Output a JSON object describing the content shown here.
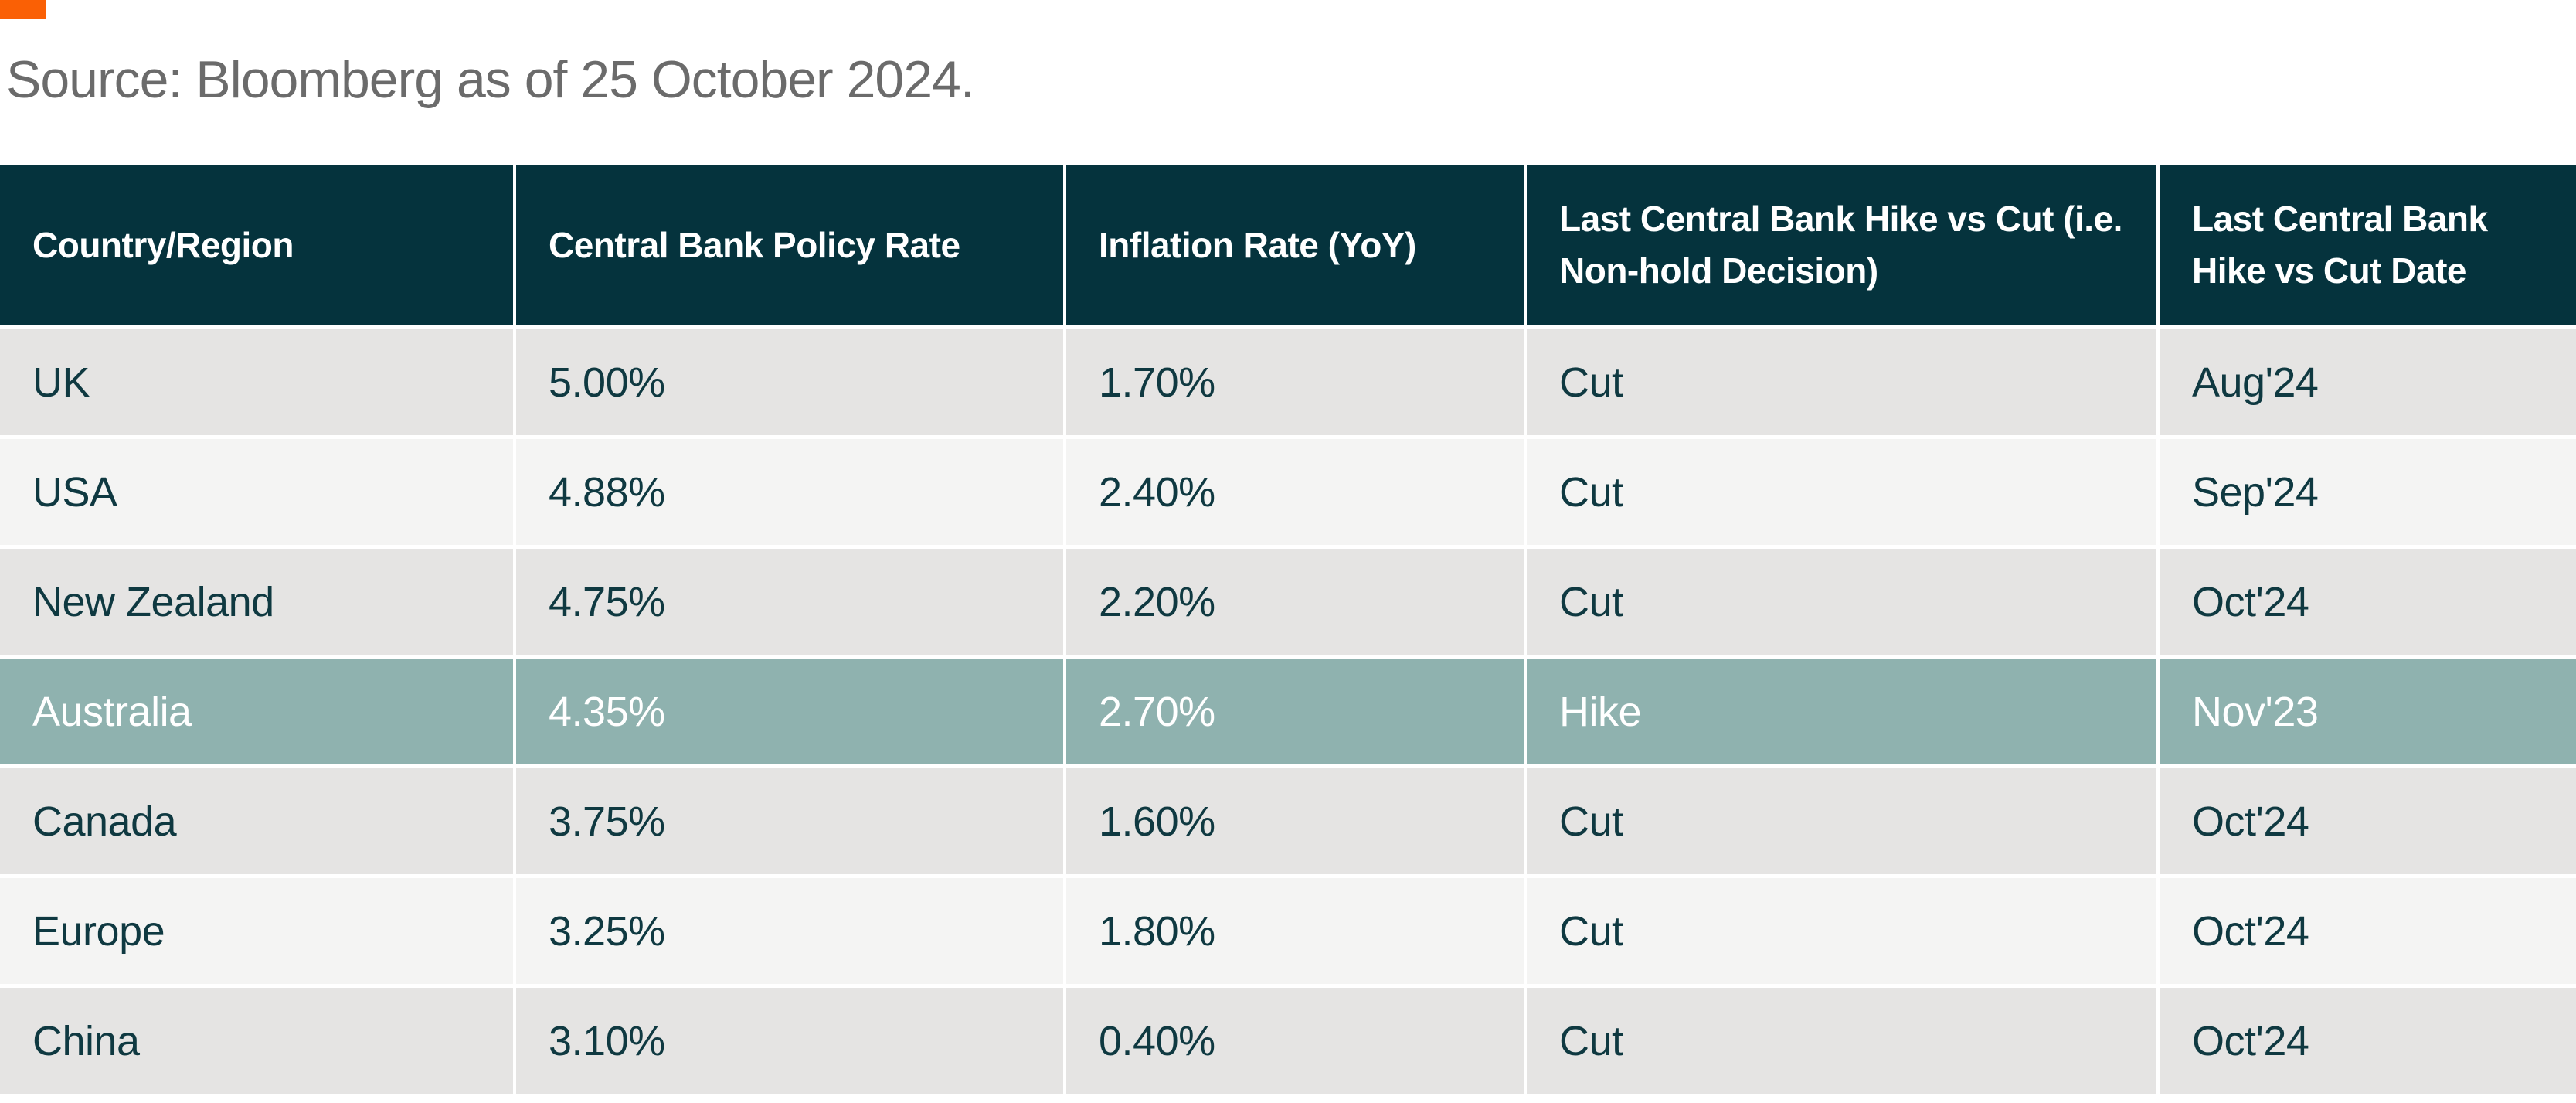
{
  "source_note": "Source: Bloomberg as of 25 October 2024.",
  "colors": {
    "accent_orange": "#FA6005",
    "source_text": "#6B6B6B",
    "header_bg": "#05333D",
    "header_text": "#FFFFFF",
    "cell_text": "#0F3941",
    "row_bg_odd": "#E5E4E3",
    "row_bg_even": "#F4F4F3",
    "highlight_bg": "#8FB2AF",
    "highlight_text": "#FFFFFF"
  },
  "table": {
    "columns": [
      {
        "key": "country",
        "label": "Country/Region"
      },
      {
        "key": "policy_rate",
        "label": "Central Bank Policy Rate"
      },
      {
        "key": "inflation",
        "label": "Inflation Rate (YoY)"
      },
      {
        "key": "decision",
        "label": "Last Central Bank Hike vs Cut (i.e. Non-hold Decision)"
      },
      {
        "key": "date",
        "label": "Last Central Bank Hike vs Cut Date"
      }
    ],
    "rows": [
      {
        "country": "UK",
        "policy_rate": "5.00%",
        "inflation": "1.70%",
        "decision": "Cut",
        "date": "Aug'24",
        "highlight": false
      },
      {
        "country": "USA",
        "policy_rate": "4.88%",
        "inflation": "2.40%",
        "decision": "Cut",
        "date": "Sep'24",
        "highlight": false
      },
      {
        "country": "New Zealand",
        "policy_rate": "4.75%",
        "inflation": "2.20%",
        "decision": "Cut",
        "date": "Oct'24",
        "highlight": false
      },
      {
        "country": "Australia",
        "policy_rate": "4.35%",
        "inflation": "2.70%",
        "decision": "Hike",
        "date": "Nov'23",
        "highlight": true
      },
      {
        "country": "Canada",
        "policy_rate": "3.75%",
        "inflation": "1.60%",
        "decision": "Cut",
        "date": "Oct'24",
        "highlight": false
      },
      {
        "country": "Europe",
        "policy_rate": "3.25%",
        "inflation": "1.80%",
        "decision": "Cut",
        "date": "Oct'24",
        "highlight": false
      },
      {
        "country": "China",
        "policy_rate": "3.10%",
        "inflation": "0.40%",
        "decision": "Cut",
        "date": "Oct'24",
        "highlight": false
      }
    ]
  },
  "chart_data": {
    "type": "table",
    "source": "Source: Bloomberg as of 25 October 2024.",
    "columns": [
      "Country/Region",
      "Central Bank Policy Rate",
      "Inflation Rate (YoY)",
      "Last Central Bank Hike vs Cut (i.e. Non-hold Decision)",
      "Last Central Bank Hike vs Cut Date"
    ],
    "rows": [
      [
        "UK",
        "5.00%",
        "1.70%",
        "Cut",
        "Aug'24"
      ],
      [
        "USA",
        "4.88%",
        "2.40%",
        "Cut",
        "Sep'24"
      ],
      [
        "New Zealand",
        "4.75%",
        "2.20%",
        "Cut",
        "Oct'24"
      ],
      [
        "Australia",
        "4.35%",
        "2.70%",
        "Hike",
        "Nov'23"
      ],
      [
        "Canada",
        "3.75%",
        "1.60%",
        "Cut",
        "Oct'24"
      ],
      [
        "Europe",
        "3.25%",
        "1.80%",
        "Cut",
        "Oct'24"
      ],
      [
        "China",
        "3.10%",
        "0.40%",
        "Cut",
        "Oct'24"
      ]
    ],
    "highlighted_row": "Australia",
    "policy_rate_values": [
      5.0,
      4.88,
      4.75,
      4.35,
      3.75,
      3.25,
      3.1
    ],
    "inflation_values": [
      1.7,
      2.4,
      2.2,
      2.7,
      1.6,
      1.8,
      0.4
    ]
  }
}
